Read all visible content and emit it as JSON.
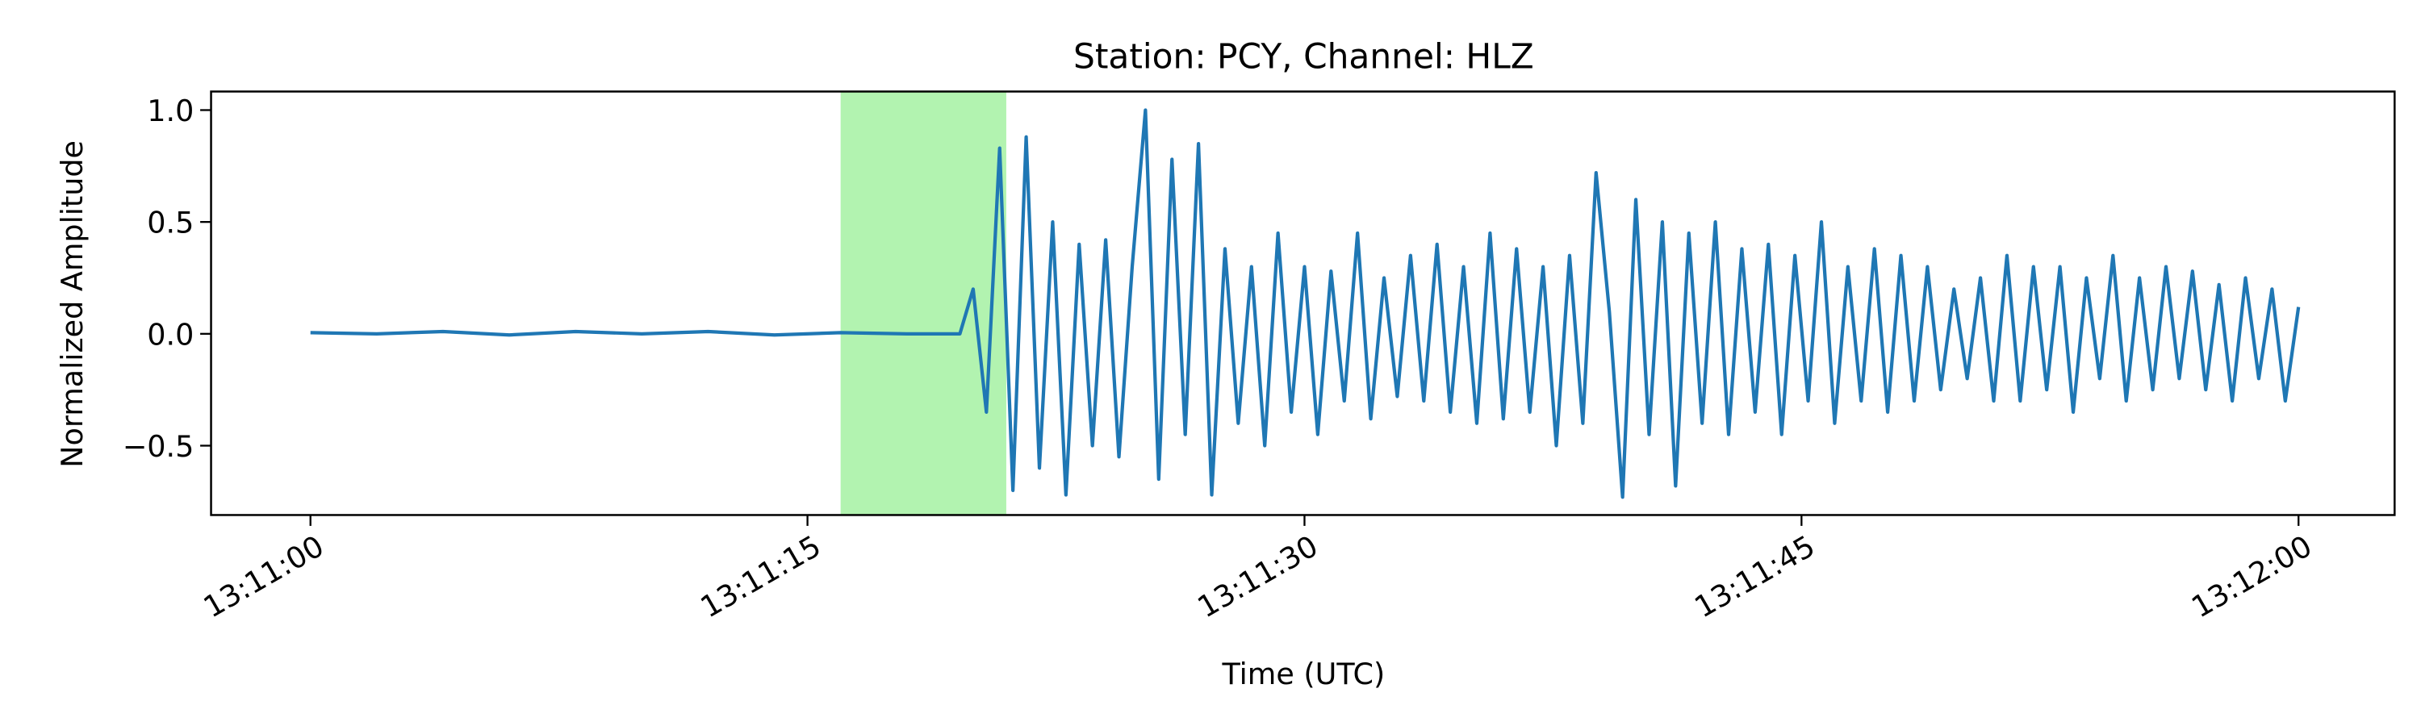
{
  "chart_data": {
    "type": "line",
    "title": "Station: PCY, Channel: HLZ",
    "xlabel": "Time (UTC)",
    "ylabel": "Normalized Amplitude",
    "x": [
      0,
      2,
      4,
      6,
      8,
      10,
      12,
      14,
      16,
      18,
      19.6,
      20,
      20.4,
      20.8,
      21.2,
      21.6,
      22,
      22.4,
      22.8,
      23.2,
      23.6,
      24,
      24.4,
      24.8,
      25.2,
      25.6,
      26,
      26.4,
      26.8,
      27.2,
      27.6,
      28,
      28.4,
      28.8,
      29.2,
      29.6,
      30,
      30.4,
      30.8,
      31.2,
      31.6,
      32,
      32.4,
      32.8,
      33.2,
      33.6,
      34,
      34.4,
      34.8,
      35.2,
      35.6,
      36,
      36.4,
      36.8,
      37.2,
      37.6,
      38,
      38.4,
      38.8,
      39.2,
      39.6,
      40,
      40.4,
      40.8,
      41.2,
      41.6,
      42,
      42.4,
      42.8,
      43.2,
      43.6,
      44,
      44.4,
      44.8,
      45.2,
      45.6,
      46,
      46.4,
      46.8,
      47.2,
      47.6,
      48,
      48.4,
      48.8,
      49.2,
      49.6,
      50,
      50.4,
      50.8,
      51.2,
      51.6,
      52,
      52.4,
      52.8,
      53.2,
      53.6,
      54,
      54.4,
      54.8,
      55.2,
      55.6,
      56,
      56.4,
      56.8,
      57.2,
      57.6,
      58,
      58.4,
      58.8,
      59.2,
      59.6,
      60
    ],
    "series": [
      {
        "color": "#1f77b4",
        "values": [
          0.005,
          0,
          0.01,
          -0.005,
          0.01,
          0,
          0.01,
          -0.005,
          0.005,
          0,
          0,
          0.2,
          -0.35,
          0.83,
          -0.7,
          0.88,
          -0.6,
          0.5,
          -0.72,
          0.4,
          -0.5,
          0.42,
          -0.55,
          0.3,
          1.0,
          -0.65,
          0.78,
          -0.45,
          0.85,
          -0.72,
          0.38,
          -0.4,
          0.3,
          -0.5,
          0.45,
          -0.35,
          0.3,
          -0.45,
          0.28,
          -0.3,
          0.45,
          -0.38,
          0.25,
          -0.28,
          0.35,
          -0.3,
          0.4,
          -0.35,
          0.3,
          -0.4,
          0.45,
          -0.38,
          0.38,
          -0.35,
          0.3,
          -0.5,
          0.35,
          -0.4,
          0.72,
          0.1,
          -0.73,
          0.6,
          -0.45,
          0.5,
          -0.68,
          0.45,
          -0.4,
          0.5,
          -0.45,
          0.38,
          -0.35,
          0.4,
          -0.45,
          0.35,
          -0.3,
          0.5,
          -0.4,
          0.3,
          -0.3,
          0.38,
          -0.35,
          0.35,
          -0.3,
          0.3,
          -0.25,
          0.2,
          -0.2,
          0.25,
          -0.3,
          0.35,
          -0.3,
          0.3,
          -0.25,
          0.3,
          -0.35,
          0.25,
          -0.2,
          0.35,
          -0.3,
          0.25,
          -0.25,
          0.3,
          -0.2,
          0.28,
          -0.25,
          0.22,
          -0.3,
          0.25,
          -0.2,
          0.2,
          -0.3,
          0.12
        ]
      }
    ],
    "span": {
      "xmin": 16,
      "xmax": 21,
      "color": "#b2f3b0"
    },
    "xlim": [
      -3,
      62.9
    ],
    "xticks": [
      {
        "value": 0,
        "label": "13:11:00"
      },
      {
        "value": 15,
        "label": "13:11:15"
      },
      {
        "value": 30,
        "label": "13:11:30"
      },
      {
        "value": 45,
        "label": "13:11:45"
      },
      {
        "value": 60,
        "label": "13:12:00"
      }
    ],
    "ylim": [
      -0.81,
      1.083
    ],
    "yticks": [
      {
        "value": -0.5,
        "label": "−0.5"
      },
      {
        "value": 0,
        "label": "0.0"
      },
      {
        "value": 0.5,
        "label": "0.5"
      },
      {
        "value": 1,
        "label": "1.0"
      }
    ],
    "grid": false
  }
}
